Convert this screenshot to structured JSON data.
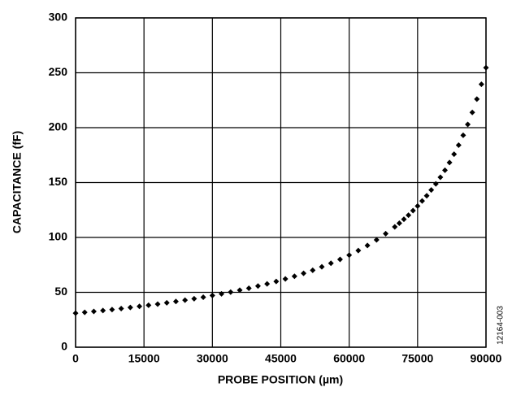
{
  "chart_data": {
    "type": "scatter",
    "xlabel": "PROBE POSITION (µm)",
    "ylabel": "CAPACITANCE (fF)",
    "figure_id": "12164-003",
    "color": "#000000",
    "grid": true,
    "xlim": [
      0,
      90000
    ],
    "ylim": [
      0,
      300
    ],
    "xticks": [
      0,
      15000,
      30000,
      45000,
      60000,
      75000,
      90000
    ],
    "yticks": [
      0,
      50,
      100,
      150,
      200,
      250,
      300
    ],
    "x": [
      0,
      2000,
      4000,
      6000,
      8000,
      10000,
      12000,
      14000,
      16000,
      18000,
      20000,
      22000,
      24000,
      26000,
      28000,
      30000,
      32000,
      34000,
      36000,
      38000,
      40000,
      42000,
      44000,
      46000,
      48000,
      50000,
      52000,
      54000,
      56000,
      58000,
      60000,
      62000,
      64000,
      66000,
      68000,
      70000,
      71000,
      72000,
      73000,
      74000,
      75000,
      76000,
      77000,
      78000,
      79000,
      80000,
      81000,
      82000,
      83000,
      84000,
      85000,
      86000,
      87000,
      88000,
      89000,
      90000
    ],
    "values": [
      31.0,
      31.8,
      32.6,
      33.4,
      34.3,
      35.2,
      36.2,
      37.2,
      38.2,
      39.3,
      40.5,
      41.7,
      42.9,
      44.2,
      45.6,
      47.1,
      48.6,
      50.2,
      51.9,
      53.7,
      55.7,
      57.7,
      59.9,
      62.2,
      64.6,
      67.3,
      70.1,
      73.2,
      76.5,
      80.0,
      83.9,
      88.1,
      92.7,
      97.8,
      103.4,
      109.6,
      113.0,
      116.6,
      120.3,
      124.4,
      128.6,
      133.2,
      138.0,
      143.2,
      148.8,
      154.8,
      161.2,
      168.2,
      175.8,
      184.1,
      193.1,
      203.0,
      213.9,
      226.0,
      239.5,
      254.6
    ]
  }
}
